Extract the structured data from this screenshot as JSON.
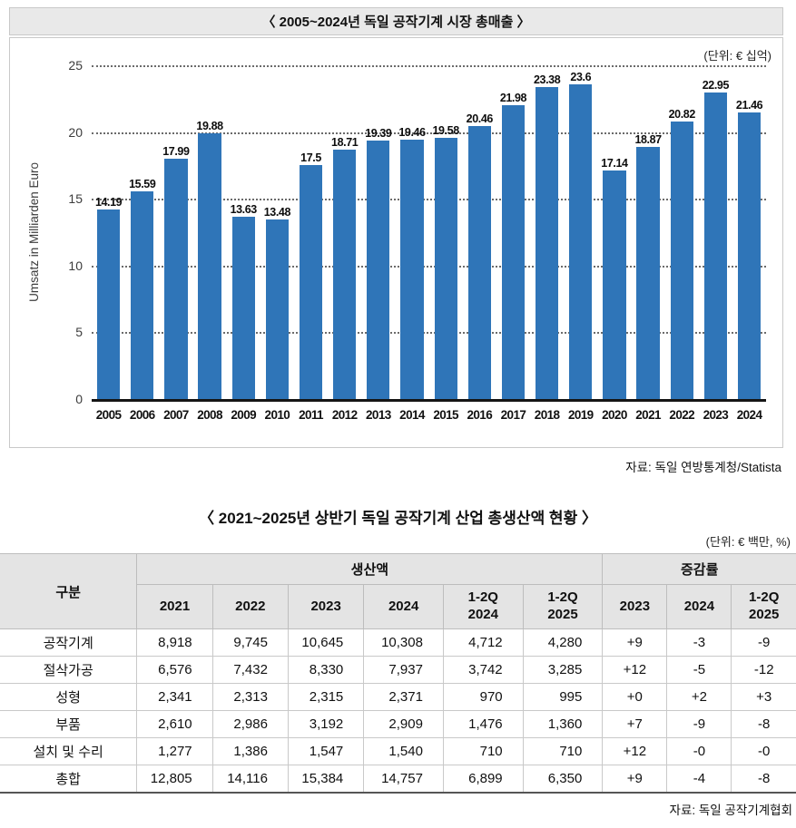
{
  "chart_data": [
    {
      "type": "bar",
      "title": "〈 2005~2024년 독일 공작기계 시장 총매출 〉",
      "unit_note": "(단위: € 십억)",
      "source": "자료: 독일 연방통계청/Statista",
      "categories": [
        "2005",
        "2006",
        "2007",
        "2008",
        "2009",
        "2010",
        "2011",
        "2012",
        "2013",
        "2014",
        "2015",
        "2016",
        "2017",
        "2018",
        "2019",
        "2020",
        "2021",
        "2022",
        "2023",
        "2024"
      ],
      "values": [
        14.19,
        15.59,
        17.99,
        19.88,
        13.63,
        13.48,
        17.5,
        18.71,
        19.39,
        19.46,
        19.58,
        20.46,
        21.98,
        23.38,
        23.6,
        17.14,
        18.87,
        20.82,
        22.95,
        21.46
      ],
      "value_labels": [
        "14.19",
        "15.59",
        "17.99",
        "19.88",
        "13.63",
        "13.48",
        "17.5",
        "18.71",
        "19.39",
        "19.46",
        "19.58",
        "20.46",
        "21.98",
        "23.38",
        "23.6",
        "17.14",
        "18.87",
        "20.82",
        "22.95",
        "21.46"
      ],
      "xlabel": "",
      "ylabel": "Umsatz in Milliarden Euro",
      "ylim": [
        0,
        25
      ],
      "yticks": [
        0,
        5,
        10,
        15,
        20,
        25
      ],
      "bar_color": "#2F75B8",
      "grid": "horizontal-dotted",
      "legend": "none"
    },
    {
      "type": "table",
      "title": "〈 2021~2025년 상반기 독일 공작기계 산업 총생산액 현황 〉",
      "unit_note": "(단위: € 백만, %)",
      "source": "자료: 독일 공작기계협회",
      "corner_header": "구분",
      "column_groups": [
        {
          "label": "생산액",
          "colspan": 6
        },
        {
          "label": "증감률",
          "colspan": 3
        }
      ],
      "sub_headers": [
        "2021",
        "2022",
        "2023",
        "2024",
        "1-2Q\n2024",
        "1-2Q\n2025",
        "2023",
        "2024",
        "1-2Q\n2025"
      ],
      "rows": [
        {
          "label": "공작기계",
          "production": [
            "8,918",
            "9,745",
            "10,645",
            "10,308",
            "4,712",
            "4,280"
          ],
          "growth": [
            "+9",
            "-3",
            "-9"
          ]
        },
        {
          "label": "절삭가공",
          "production": [
            "6,576",
            "7,432",
            "8,330",
            "7,937",
            "3,742",
            "3,285"
          ],
          "growth": [
            "+12",
            "-5",
            "-12"
          ]
        },
        {
          "label": "성형",
          "production": [
            "2,341",
            "2,313",
            "2,315",
            "2,371",
            "970",
            "995"
          ],
          "growth": [
            "+0",
            "+2",
            "+3"
          ]
        },
        {
          "label": "부품",
          "production": [
            "2,610",
            "2,986",
            "3,192",
            "2,909",
            "1,476",
            "1,360"
          ],
          "growth": [
            "+7",
            "-9",
            "-8"
          ]
        },
        {
          "label": "설치 및 수리",
          "production": [
            "1,277",
            "1,386",
            "1,547",
            "1,540",
            "710",
            "710"
          ],
          "growth": [
            "+12",
            "-0",
            "-0"
          ]
        },
        {
          "label": "총합",
          "production": [
            "12,805",
            "14,116",
            "15,384",
            "14,757",
            "6,899",
            "6,350"
          ],
          "growth": [
            "+9",
            "-4",
            "-8"
          ]
        }
      ]
    }
  ]
}
